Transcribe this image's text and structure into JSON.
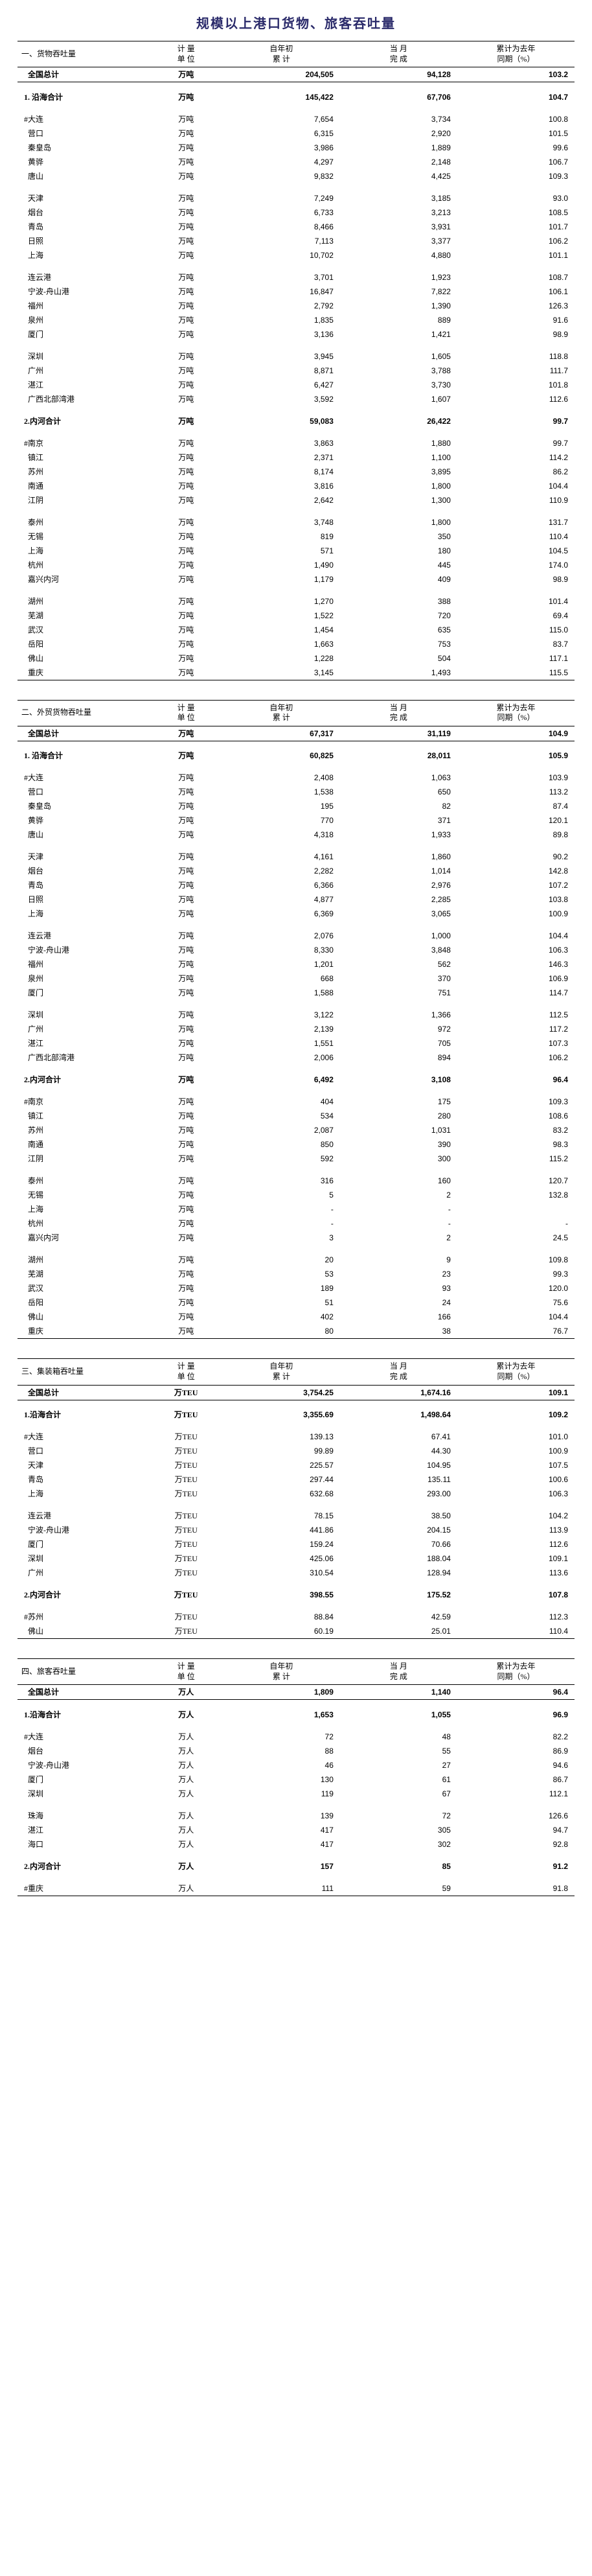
{
  "title": "规模以上港口货物、旅客吞吐量",
  "headers": {
    "unit": "计 量\n单 位",
    "ytd": "自年初\n累 计",
    "month": "当 月\n完 成",
    "yoy": "累计为去年\n同期（%）"
  },
  "sections": [
    {
      "header": "一、货物吞吐量",
      "rows": [
        {
          "l": "  全国总计",
          "u": "万吨",
          "a": "204,505",
          "b": "94,128",
          "c": "103.2",
          "bold": true,
          "sep": true
        },
        {
          "spacer": true
        },
        {
          "l": "1. 沿海合计",
          "u": "万吨",
          "a": "145,422",
          "b": "67,706",
          "c": "104.7",
          "bold": true
        },
        {
          "spacer": true
        },
        {
          "l": "#大连",
          "u": "万吨",
          "a": "7,654",
          "b": "3,734",
          "c": "100.8"
        },
        {
          "l": "  营口",
          "u": "万吨",
          "a": "6,315",
          "b": "2,920",
          "c": "101.5"
        },
        {
          "l": "  秦皇岛",
          "u": "万吨",
          "a": "3,986",
          "b": "1,889",
          "c": "99.6"
        },
        {
          "l": "  黄骅",
          "u": "万吨",
          "a": "4,297",
          "b": "2,148",
          "c": "106.7"
        },
        {
          "l": "  唐山",
          "u": "万吨",
          "a": "9,832",
          "b": "4,425",
          "c": "109.3"
        },
        {
          "spacer": true
        },
        {
          "l": "  天津",
          "u": "万吨",
          "a": "7,249",
          "b": "3,185",
          "c": "93.0"
        },
        {
          "l": "  烟台",
          "u": "万吨",
          "a": "6,733",
          "b": "3,213",
          "c": "108.5"
        },
        {
          "l": "  青岛",
          "u": "万吨",
          "a": "8,466",
          "b": "3,931",
          "c": "101.7"
        },
        {
          "l": "  日照",
          "u": "万吨",
          "a": "7,113",
          "b": "3,377",
          "c": "106.2"
        },
        {
          "l": "  上海",
          "u": "万吨",
          "a": "10,702",
          "b": "4,880",
          "c": "101.1"
        },
        {
          "spacer": true
        },
        {
          "l": "  连云港",
          "u": "万吨",
          "a": "3,701",
          "b": "1,923",
          "c": "108.7"
        },
        {
          "l": "  宁波-舟山港",
          "u": "万吨",
          "a": "16,847",
          "b": "7,822",
          "c": "106.1"
        },
        {
          "l": "  福州",
          "u": "万吨",
          "a": "2,792",
          "b": "1,390",
          "c": "126.3"
        },
        {
          "l": "  泉州",
          "u": "万吨",
          "a": "1,835",
          "b": "889",
          "c": "91.6"
        },
        {
          "l": "  厦门",
          "u": "万吨",
          "a": "3,136",
          "b": "1,421",
          "c": "98.9"
        },
        {
          "spacer": true
        },
        {
          "l": "  深圳",
          "u": "万吨",
          "a": "3,945",
          "b": "1,605",
          "c": "118.8"
        },
        {
          "l": "  广州",
          "u": "万吨",
          "a": "8,871",
          "b": "3,788",
          "c": "111.7"
        },
        {
          "l": "  湛江",
          "u": "万吨",
          "a": "6,427",
          "b": "3,730",
          "c": "101.8"
        },
        {
          "l": "  广西北部湾港",
          "u": "万吨",
          "a": "3,592",
          "b": "1,607",
          "c": "112.6"
        },
        {
          "spacer": true
        },
        {
          "l": "2.内河合计",
          "u": "万吨",
          "a": "59,083",
          "b": "26,422",
          "c": "99.7",
          "bold": true
        },
        {
          "spacer": true
        },
        {
          "l": "#南京",
          "u": "万吨",
          "a": "3,863",
          "b": "1,880",
          "c": "99.7"
        },
        {
          "l": "  镇江",
          "u": "万吨",
          "a": "2,371",
          "b": "1,100",
          "c": "114.2"
        },
        {
          "l": "  苏州",
          "u": "万吨",
          "a": "8,174",
          "b": "3,895",
          "c": "86.2"
        },
        {
          "l": "  南通",
          "u": "万吨",
          "a": "3,816",
          "b": "1,800",
          "c": "104.4"
        },
        {
          "l": "  江阴",
          "u": "万吨",
          "a": "2,642",
          "b": "1,300",
          "c": "110.9"
        },
        {
          "spacer": true
        },
        {
          "l": "  泰州",
          "u": "万吨",
          "a": "3,748",
          "b": "1,800",
          "c": "131.7"
        },
        {
          "l": "  无锡",
          "u": "万吨",
          "a": "819",
          "b": "350",
          "c": "110.4"
        },
        {
          "l": "  上海",
          "u": "万吨",
          "a": "571",
          "b": "180",
          "c": "104.5"
        },
        {
          "l": "  杭州",
          "u": "万吨",
          "a": "1,490",
          "b": "445",
          "c": "174.0"
        },
        {
          "l": "  嘉兴内河",
          "u": "万吨",
          "a": "1,179",
          "b": "409",
          "c": "98.9"
        },
        {
          "spacer": true
        },
        {
          "l": "  湖州",
          "u": "万吨",
          "a": "1,270",
          "b": "388",
          "c": "101.4"
        },
        {
          "l": "  芜湖",
          "u": "万吨",
          "a": "1,522",
          "b": "720",
          "c": "69.4"
        },
        {
          "l": "  武汉",
          "u": "万吨",
          "a": "1,454",
          "b": "635",
          "c": "115.0"
        },
        {
          "l": "  岳阳",
          "u": "万吨",
          "a": "1,663",
          "b": "753",
          "c": "83.7"
        },
        {
          "l": "  佛山",
          "u": "万吨",
          "a": "1,228",
          "b": "504",
          "c": "117.1"
        },
        {
          "l": "  重庆",
          "u": "万吨",
          "a": "3,145",
          "b": "1,493",
          "c": "115.5",
          "last": true
        }
      ]
    },
    {
      "header": "二、外贸货物吞吐量",
      "rows": [
        {
          "l": "  全国总计",
          "u": "万吨",
          "a": "67,317",
          "b": "31,119",
          "c": "104.9",
          "bold": true,
          "sep": true
        },
        {
          "spacer": true
        },
        {
          "l": "1. 沿海合计",
          "u": "万吨",
          "a": "60,825",
          "b": "28,011",
          "c": "105.9",
          "bold": true
        },
        {
          "spacer": true
        },
        {
          "l": "#大连",
          "u": "万吨",
          "a": "2,408",
          "b": "1,063",
          "c": "103.9"
        },
        {
          "l": "  营口",
          "u": "万吨",
          "a": "1,538",
          "b": "650",
          "c": "113.2"
        },
        {
          "l": "  秦皇岛",
          "u": "万吨",
          "a": "195",
          "b": "82",
          "c": "87.4"
        },
        {
          "l": "  黄骅",
          "u": "万吨",
          "a": "770",
          "b": "371",
          "c": "120.1"
        },
        {
          "l": "  唐山",
          "u": "万吨",
          "a": "4,318",
          "b": "1,933",
          "c": "89.8"
        },
        {
          "spacer": true
        },
        {
          "l": "  天津",
          "u": "万吨",
          "a": "4,161",
          "b": "1,860",
          "c": "90.2"
        },
        {
          "l": "  烟台",
          "u": "万吨",
          "a": "2,282",
          "b": "1,014",
          "c": "142.8"
        },
        {
          "l": "  青岛",
          "u": "万吨",
          "a": "6,366",
          "b": "2,976",
          "c": "107.2"
        },
        {
          "l": "  日照",
          "u": "万吨",
          "a": "4,877",
          "b": "2,285",
          "c": "103.8"
        },
        {
          "l": "  上海",
          "u": "万吨",
          "a": "6,369",
          "b": "3,065",
          "c": "100.9"
        },
        {
          "spacer": true
        },
        {
          "l": "  连云港",
          "u": "万吨",
          "a": "2,076",
          "b": "1,000",
          "c": "104.4"
        },
        {
          "l": "  宁波-舟山港",
          "u": "万吨",
          "a": "8,330",
          "b": "3,848",
          "c": "106.3"
        },
        {
          "l": "  福州",
          "u": "万吨",
          "a": "1,201",
          "b": "562",
          "c": "146.3"
        },
        {
          "l": "  泉州",
          "u": "万吨",
          "a": "668",
          "b": "370",
          "c": "106.9"
        },
        {
          "l": "  厦门",
          "u": "万吨",
          "a": "1,588",
          "b": "751",
          "c": "114.7"
        },
        {
          "spacer": true
        },
        {
          "l": "  深圳",
          "u": "万吨",
          "a": "3,122",
          "b": "1,366",
          "c": "112.5"
        },
        {
          "l": "  广州",
          "u": "万吨",
          "a": "2,139",
          "b": "972",
          "c": "117.2"
        },
        {
          "l": "  湛江",
          "u": "万吨",
          "a": "1,551",
          "b": "705",
          "c": "107.3"
        },
        {
          "l": "  广西北部湾港",
          "u": "万吨",
          "a": "2,006",
          "b": "894",
          "c": "106.2"
        },
        {
          "spacer": true
        },
        {
          "l": "2.内河合计",
          "u": "万吨",
          "a": "6,492",
          "b": "3,108",
          "c": "96.4",
          "bold": true
        },
        {
          "spacer": true
        },
        {
          "l": "#南京",
          "u": "万吨",
          "a": "404",
          "b": "175",
          "c": "109.3"
        },
        {
          "l": "  镇江",
          "u": "万吨",
          "a": "534",
          "b": "280",
          "c": "108.6"
        },
        {
          "l": "  苏州",
          "u": "万吨",
          "a": "2,087",
          "b": "1,031",
          "c": "83.2"
        },
        {
          "l": "  南通",
          "u": "万吨",
          "a": "850",
          "b": "390",
          "c": "98.3"
        },
        {
          "l": "  江阴",
          "u": "万吨",
          "a": "592",
          "b": "300",
          "c": "115.2"
        },
        {
          "spacer": true
        },
        {
          "l": "  泰州",
          "u": "万吨",
          "a": "316",
          "b": "160",
          "c": "120.7"
        },
        {
          "l": "  无锡",
          "u": "万吨",
          "a": "5",
          "b": "2",
          "c": "132.8"
        },
        {
          "l": "  上海",
          "u": "万吨",
          "a": "-",
          "b": "-",
          "c": ""
        },
        {
          "l": "  杭州",
          "u": "万吨",
          "a": "-",
          "b": "-",
          "c": "-"
        },
        {
          "l": "  嘉兴内河",
          "u": "万吨",
          "a": "3",
          "b": "2",
          "c": "24.5"
        },
        {
          "spacer": true
        },
        {
          "l": "  湖州",
          "u": "万吨",
          "a": "20",
          "b": "9",
          "c": "109.8"
        },
        {
          "l": "  芜湖",
          "u": "万吨",
          "a": "53",
          "b": "23",
          "c": "99.3"
        },
        {
          "l": "  武汉",
          "u": "万吨",
          "a": "189",
          "b": "93",
          "c": "120.0"
        },
        {
          "l": "  岳阳",
          "u": "万吨",
          "a": "51",
          "b": "24",
          "c": "75.6"
        },
        {
          "l": "  佛山",
          "u": "万吨",
          "a": "402",
          "b": "166",
          "c": "104.4"
        },
        {
          "l": "  重庆",
          "u": "万吨",
          "a": "80",
          "b": "38",
          "c": "76.7",
          "last": true
        }
      ]
    },
    {
      "header": "三、集装箱吞吐量",
      "rows": [
        {
          "l": "  全国总计",
          "u": "万TEU",
          "a": "3,754.25",
          "b": "1,674.16",
          "c": "109.1",
          "bold": true,
          "sep": true
        },
        {
          "spacer": true
        },
        {
          "l": "1.沿海合计",
          "u": "万TEU",
          "a": "3,355.69",
          "b": "1,498.64",
          "c": "109.2",
          "bold": true
        },
        {
          "spacer": true
        },
        {
          "l": "#大连",
          "u": "万TEU",
          "a": "139.13",
          "b": "67.41",
          "c": "101.0"
        },
        {
          "l": "  营口",
          "u": "万TEU",
          "a": "99.89",
          "b": "44.30",
          "c": "100.9"
        },
        {
          "l": "  天津",
          "u": "万TEU",
          "a": "225.57",
          "b": "104.95",
          "c": "107.5"
        },
        {
          "l": "  青岛",
          "u": "万TEU",
          "a": "297.44",
          "b": "135.11",
          "c": "100.6"
        },
        {
          "l": "  上海",
          "u": "万TEU",
          "a": "632.68",
          "b": "293.00",
          "c": "106.3"
        },
        {
          "spacer": true
        },
        {
          "l": "  连云港",
          "u": "万TEU",
          "a": "78.15",
          "b": "38.50",
          "c": "104.2"
        },
        {
          "l": "  宁波-舟山港",
          "u": "万TEU",
          "a": "441.86",
          "b": "204.15",
          "c": "113.9"
        },
        {
          "l": "  厦门",
          "u": "万TEU",
          "a": "159.24",
          "b": "70.66",
          "c": "112.6"
        },
        {
          "l": "  深圳",
          "u": "万TEU",
          "a": "425.06",
          "b": "188.04",
          "c": "109.1"
        },
        {
          "l": "  广州",
          "u": "万TEU",
          "a": "310.54",
          "b": "128.94",
          "c": "113.6"
        },
        {
          "spacer": true
        },
        {
          "l": "2.内河合计",
          "u": "万TEU",
          "a": "398.55",
          "b": "175.52",
          "c": "107.8",
          "bold": true
        },
        {
          "spacer": true
        },
        {
          "l": "#苏州",
          "u": "万TEU",
          "a": "88.84",
          "b": "42.59",
          "c": "112.3"
        },
        {
          "l": "  佛山",
          "u": "万TEU",
          "a": "60.19",
          "b": "25.01",
          "c": "110.4",
          "last": true
        }
      ]
    },
    {
      "header": "四、旅客吞吐量",
      "rows": [
        {
          "l": "  全国总计",
          "u": "万人",
          "a": "1,809",
          "b": "1,140",
          "c": "96.4",
          "bold": true,
          "sep": true
        },
        {
          "spacer": true
        },
        {
          "l": "1.沿海合计",
          "u": "万人",
          "a": "1,653",
          "b": "1,055",
          "c": "96.9",
          "bold": true
        },
        {
          "spacer": true
        },
        {
          "l": "#大连",
          "u": "万人",
          "a": "72",
          "b": "48",
          "c": "82.2"
        },
        {
          "l": "  烟台",
          "u": "万人",
          "a": "88",
          "b": "55",
          "c": "86.9"
        },
        {
          "l": "  宁波-舟山港",
          "u": "万人",
          "a": "46",
          "b": "27",
          "c": "94.6"
        },
        {
          "l": "  厦门",
          "u": "万人",
          "a": "130",
          "b": "61",
          "c": "86.7"
        },
        {
          "l": "  深圳",
          "u": "万人",
          "a": "119",
          "b": "67",
          "c": "112.1"
        },
        {
          "spacer": true
        },
        {
          "l": "  珠海",
          "u": "万人",
          "a": "139",
          "b": "72",
          "c": "126.6"
        },
        {
          "l": "  湛江",
          "u": "万人",
          "a": "417",
          "b": "305",
          "c": "94.7"
        },
        {
          "l": "  海口",
          "u": "万人",
          "a": "417",
          "b": "302",
          "c": "92.8"
        },
        {
          "spacer": true
        },
        {
          "l": "2.内河合计",
          "u": "万人",
          "a": "157",
          "b": "85",
          "c": "91.2",
          "bold": true
        },
        {
          "spacer": true
        },
        {
          "l": "#重庆",
          "u": "万人",
          "a": "111",
          "b": "59",
          "c": "91.8",
          "last": true
        }
      ]
    }
  ]
}
